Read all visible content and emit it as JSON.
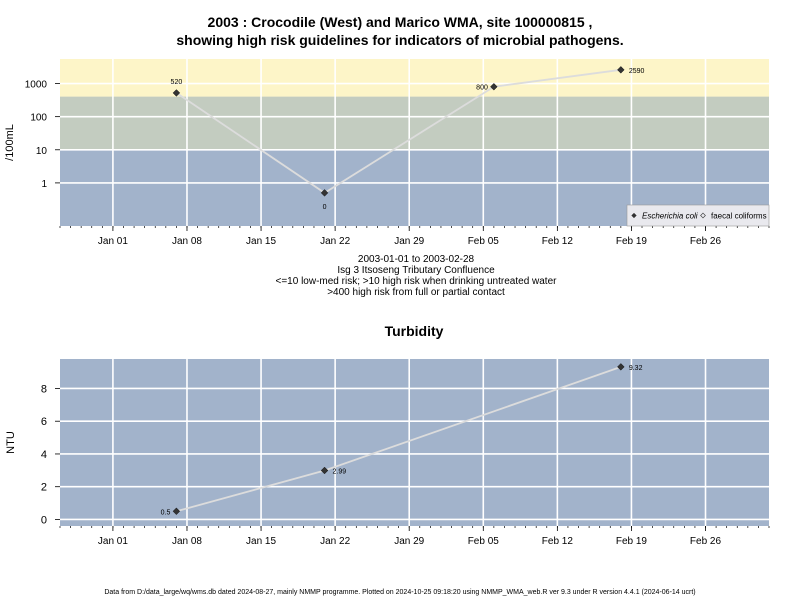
{
  "title_line1": "2003 : Crocodile (West) and Marico WMA, site 100000815 ,",
  "title_line2": "showing high risk guidelines for indicators of microbial pathogens.",
  "subtitle_lines": [
    "2003-01-01 to 2003-02-28",
    "Isg 3 Itsoseng Tributary Confluence",
    "<=10 low-med risk; >10 high risk when drinking untreated water",
    ">400 high risk from full or partial contact"
  ],
  "footer": "Data from D:/data_large/wq/wms.db dated 2024-08-27, mainly NMMP programme. Plotted on 2024-10-25 09:18:20 using NMMP_WMA_web.R ver 9.3 under R version 4.4.1 (2024-06-14 ucrt)",
  "colors": {
    "band_low": "#a2b3cb",
    "band_mid": "#c3ccc0",
    "band_high": "#fdf5c8",
    "grid": "#ffffff",
    "line": "#dcdcdc",
    "point": "#333333"
  },
  "chart_data": [
    {
      "type": "line",
      "name": "microbial",
      "ylabel": "/100mL",
      "y_scale": "log",
      "x_range": [
        "2002-12-27",
        "2003-03-04"
      ],
      "x_ticks": [
        {
          "date": "2003-01-01",
          "label": "Jan 01"
        },
        {
          "date": "2003-01-08",
          "label": "Jan 08"
        },
        {
          "date": "2003-01-15",
          "label": "Jan 15"
        },
        {
          "date": "2003-01-22",
          "label": "Jan 22"
        },
        {
          "date": "2003-01-29",
          "label": "Jan 29"
        },
        {
          "date": "2003-02-05",
          "label": "Feb 05"
        },
        {
          "date": "2003-02-12",
          "label": "Feb 12"
        },
        {
          "date": "2003-02-19",
          "label": "Feb 19"
        },
        {
          "date": "2003-02-26",
          "label": "Feb 26"
        }
      ],
      "y_ticks": [
        {
          "value": 1,
          "label": "1"
        },
        {
          "value": 10,
          "label": "10"
        },
        {
          "value": 100,
          "label": "100"
        },
        {
          "value": 1000,
          "label": "1000"
        }
      ],
      "bands": [
        {
          "from": 0.05,
          "to": 10,
          "color": "band_low"
        },
        {
          "from": 10,
          "to": 400,
          "color": "band_mid"
        },
        {
          "from": 400,
          "to": 5500,
          "color": "band_high"
        }
      ],
      "series": [
        {
          "name": "Escherichia coli",
          "marker": "diamond-filled",
          "points": [
            {
              "x": "2003-01-07",
              "y": 520,
              "label": "520"
            },
            {
              "x": "2003-01-21",
              "y": 0.5,
              "label": "0"
            },
            {
              "x": "2003-02-06",
              "y": 800,
              "label": "800"
            },
            {
              "x": "2003-02-18",
              "y": 2590,
              "label": "2590"
            }
          ]
        },
        {
          "name": "faecal coliforms",
          "marker": "diamond-open",
          "points": []
        }
      ],
      "legend_position": "bottom-right"
    },
    {
      "type": "line",
      "name": "turbidity",
      "title": "Turbidity",
      "ylabel": "NTU",
      "y_scale": "linear",
      "ylim": [
        -0.4,
        9.8
      ],
      "x_range": [
        "2002-12-27",
        "2003-03-04"
      ],
      "y_ticks": [
        {
          "value": 0,
          "label": "0"
        },
        {
          "value": 2,
          "label": "2"
        },
        {
          "value": 4,
          "label": "4"
        },
        {
          "value": 6,
          "label": "6"
        },
        {
          "value": 8,
          "label": "8"
        }
      ],
      "series": [
        {
          "name": "Turbidity",
          "marker": "diamond-filled",
          "points": [
            {
              "x": "2003-01-07",
              "y": 0.5,
              "label": "0.5"
            },
            {
              "x": "2003-01-21",
              "y": 2.99,
              "label": "2.99"
            },
            {
              "x": "2003-02-18",
              "y": 9.32,
              "label": "9.32"
            }
          ]
        }
      ]
    }
  ]
}
